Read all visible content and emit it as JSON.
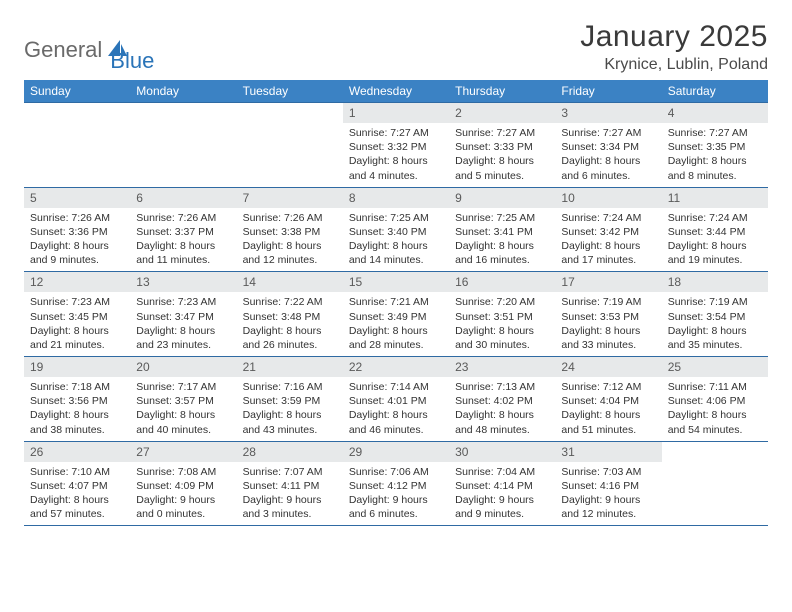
{
  "logo": {
    "text1": "General",
    "text2": "Blue"
  },
  "title": "January 2025",
  "location": "Krynice, Lublin, Poland",
  "colors": {
    "header_bg": "#3b82c4",
    "header_text": "#ffffff",
    "daynum_bg": "#e7e9ea",
    "row_border": "#2f6aa3",
    "logo_gray": "#6a6a6a",
    "logo_blue": "#2a74b8"
  },
  "weekdays": [
    "Sunday",
    "Monday",
    "Tuesday",
    "Wednesday",
    "Thursday",
    "Friday",
    "Saturday"
  ],
  "weeks": [
    [
      {
        "num": "",
        "empty": true
      },
      {
        "num": "",
        "empty": true
      },
      {
        "num": "",
        "empty": true
      },
      {
        "num": "1",
        "sunrise": "7:27 AM",
        "sunset": "3:32 PM",
        "daylight": "8 hours and 4 minutes."
      },
      {
        "num": "2",
        "sunrise": "7:27 AM",
        "sunset": "3:33 PM",
        "daylight": "8 hours and 5 minutes."
      },
      {
        "num": "3",
        "sunrise": "7:27 AM",
        "sunset": "3:34 PM",
        "daylight": "8 hours and 6 minutes."
      },
      {
        "num": "4",
        "sunrise": "7:27 AM",
        "sunset": "3:35 PM",
        "daylight": "8 hours and 8 minutes."
      }
    ],
    [
      {
        "num": "5",
        "sunrise": "7:26 AM",
        "sunset": "3:36 PM",
        "daylight": "8 hours and 9 minutes."
      },
      {
        "num": "6",
        "sunrise": "7:26 AM",
        "sunset": "3:37 PM",
        "daylight": "8 hours and 11 minutes."
      },
      {
        "num": "7",
        "sunrise": "7:26 AM",
        "sunset": "3:38 PM",
        "daylight": "8 hours and 12 minutes."
      },
      {
        "num": "8",
        "sunrise": "7:25 AM",
        "sunset": "3:40 PM",
        "daylight": "8 hours and 14 minutes."
      },
      {
        "num": "9",
        "sunrise": "7:25 AM",
        "sunset": "3:41 PM",
        "daylight": "8 hours and 16 minutes."
      },
      {
        "num": "10",
        "sunrise": "7:24 AM",
        "sunset": "3:42 PM",
        "daylight": "8 hours and 17 minutes."
      },
      {
        "num": "11",
        "sunrise": "7:24 AM",
        "sunset": "3:44 PM",
        "daylight": "8 hours and 19 minutes."
      }
    ],
    [
      {
        "num": "12",
        "sunrise": "7:23 AM",
        "sunset": "3:45 PM",
        "daylight": "8 hours and 21 minutes."
      },
      {
        "num": "13",
        "sunrise": "7:23 AM",
        "sunset": "3:47 PM",
        "daylight": "8 hours and 23 minutes."
      },
      {
        "num": "14",
        "sunrise": "7:22 AM",
        "sunset": "3:48 PM",
        "daylight": "8 hours and 26 minutes."
      },
      {
        "num": "15",
        "sunrise": "7:21 AM",
        "sunset": "3:49 PM",
        "daylight": "8 hours and 28 minutes."
      },
      {
        "num": "16",
        "sunrise": "7:20 AM",
        "sunset": "3:51 PM",
        "daylight": "8 hours and 30 minutes."
      },
      {
        "num": "17",
        "sunrise": "7:19 AM",
        "sunset": "3:53 PM",
        "daylight": "8 hours and 33 minutes."
      },
      {
        "num": "18",
        "sunrise": "7:19 AM",
        "sunset": "3:54 PM",
        "daylight": "8 hours and 35 minutes."
      }
    ],
    [
      {
        "num": "19",
        "sunrise": "7:18 AM",
        "sunset": "3:56 PM",
        "daylight": "8 hours and 38 minutes."
      },
      {
        "num": "20",
        "sunrise": "7:17 AM",
        "sunset": "3:57 PM",
        "daylight": "8 hours and 40 minutes."
      },
      {
        "num": "21",
        "sunrise": "7:16 AM",
        "sunset": "3:59 PM",
        "daylight": "8 hours and 43 minutes."
      },
      {
        "num": "22",
        "sunrise": "7:14 AM",
        "sunset": "4:01 PM",
        "daylight": "8 hours and 46 minutes."
      },
      {
        "num": "23",
        "sunrise": "7:13 AM",
        "sunset": "4:02 PM",
        "daylight": "8 hours and 48 minutes."
      },
      {
        "num": "24",
        "sunrise": "7:12 AM",
        "sunset": "4:04 PM",
        "daylight": "8 hours and 51 minutes."
      },
      {
        "num": "25",
        "sunrise": "7:11 AM",
        "sunset": "4:06 PM",
        "daylight": "8 hours and 54 minutes."
      }
    ],
    [
      {
        "num": "26",
        "sunrise": "7:10 AM",
        "sunset": "4:07 PM",
        "daylight": "8 hours and 57 minutes."
      },
      {
        "num": "27",
        "sunrise": "7:08 AM",
        "sunset": "4:09 PM",
        "daylight": "9 hours and 0 minutes."
      },
      {
        "num": "28",
        "sunrise": "7:07 AM",
        "sunset": "4:11 PM",
        "daylight": "9 hours and 3 minutes."
      },
      {
        "num": "29",
        "sunrise": "7:06 AM",
        "sunset": "4:12 PM",
        "daylight": "9 hours and 6 minutes."
      },
      {
        "num": "30",
        "sunrise": "7:04 AM",
        "sunset": "4:14 PM",
        "daylight": "9 hours and 9 minutes."
      },
      {
        "num": "31",
        "sunrise": "7:03 AM",
        "sunset": "4:16 PM",
        "daylight": "9 hours and 12 minutes."
      },
      {
        "num": "",
        "empty": true
      }
    ]
  ]
}
